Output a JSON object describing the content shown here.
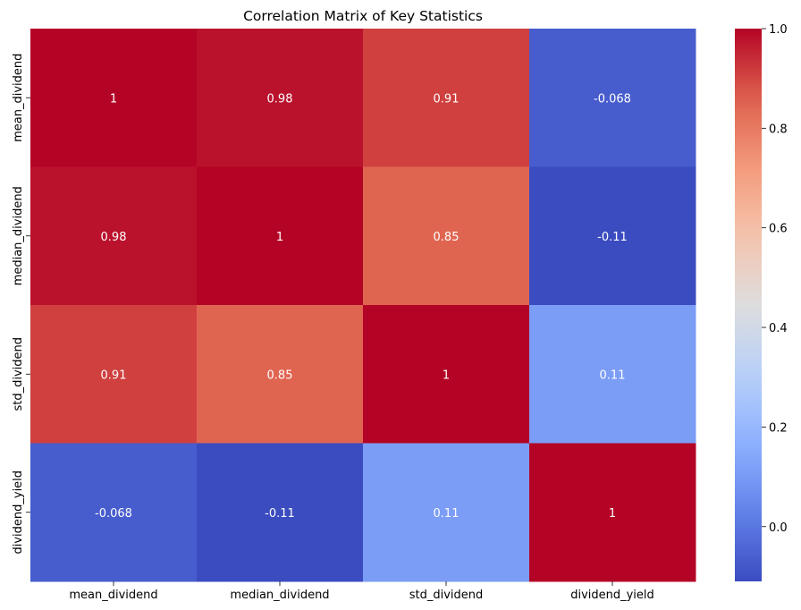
{
  "chart_data": {
    "type": "heatmap",
    "title": "Correlation Matrix of Key Statistics",
    "xlabel": "",
    "ylabel": "",
    "x_categories": [
      "mean_dividend",
      "median_dividend",
      "std_dividend",
      "dividend_yield"
    ],
    "y_categories": [
      "mean_dividend",
      "median_dividend",
      "std_dividend",
      "dividend_yield"
    ],
    "values": [
      [
        1,
        0.98,
        0.91,
        -0.068
      ],
      [
        0.98,
        1,
        0.85,
        -0.11
      ],
      [
        0.91,
        0.85,
        1,
        0.11
      ],
      [
        -0.068,
        -0.11,
        0.11,
        1
      ]
    ],
    "annotations": [
      [
        "1",
        "0.98",
        "0.91",
        "-0.068"
      ],
      [
        "0.98",
        "1",
        "0.85",
        "-0.11"
      ],
      [
        "0.91",
        "0.85",
        "1",
        "0.11"
      ],
      [
        "-0.068",
        "-0.11",
        "0.11",
        "1"
      ]
    ],
    "colormap": "coolwarm",
    "colorbar": {
      "range": [
        -0.11,
        1.0
      ],
      "ticks": [
        0.0,
        0.2,
        0.4,
        0.6,
        0.8,
        1.0
      ],
      "tick_labels": [
        "0.0",
        "0.2",
        "0.4",
        "0.6",
        "0.8",
        "1.0"
      ]
    },
    "annotation_color": "#ffffff"
  }
}
